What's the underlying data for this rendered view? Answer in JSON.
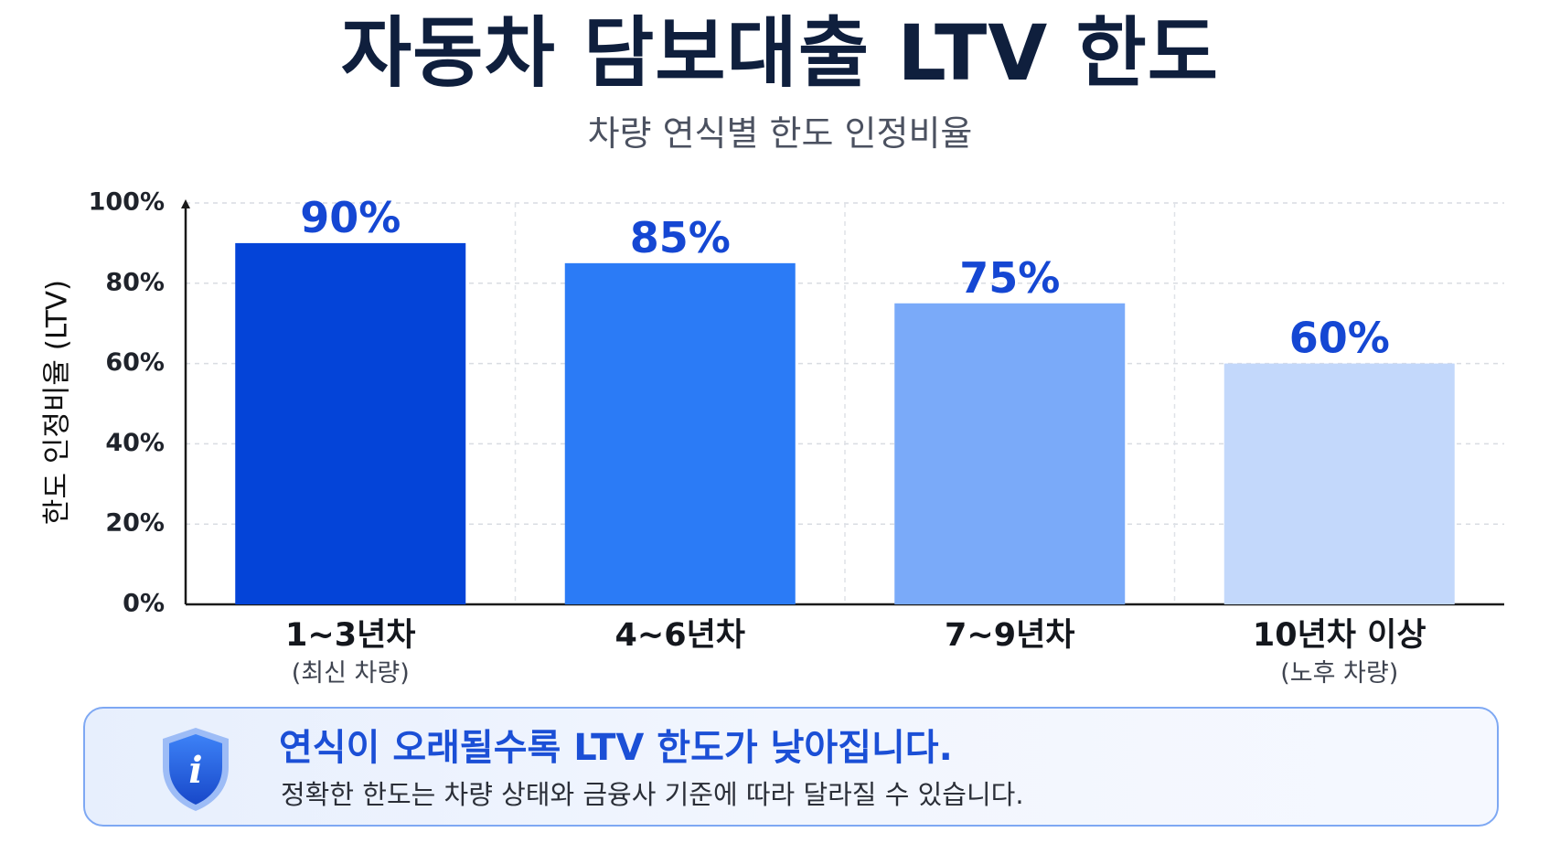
{
  "header": {
    "title": "자동차 담보대출 LTV 한도",
    "subtitle": "차량 연식별 한도 인정비율"
  },
  "chart_data": {
    "type": "bar",
    "categories": [
      "1~3년차",
      "4~6년차",
      "7~9년차",
      "10년차 이상"
    ],
    "category_sublabels": [
      "(최신 차량)",
      "",
      "",
      "(노후 차량)"
    ],
    "values": [
      90,
      85,
      75,
      60
    ],
    "data_labels": [
      "90%",
      "85%",
      "75%",
      "60%"
    ],
    "bar_colors": [
      "#0444d8",
      "#2b7bf6",
      "#7aaaf9",
      "#c3d8fb"
    ],
    "label_color": "#1547d3",
    "ylabel": "한도 인정비율 (LTV)",
    "ylim": [
      0,
      100
    ],
    "yticks": [
      0,
      20,
      40,
      60,
      80,
      100
    ],
    "ytick_labels": [
      "0%",
      "20%",
      "40%",
      "60%",
      "80%",
      "100%"
    ],
    "grid": true
  },
  "note": {
    "icon": "shield-info-icon",
    "icon_letter": "i",
    "headline": "연식이 오래될수록 LTV 한도가 낮아집니다.",
    "detail": "정확한 한도는 차량 상태와 금융사 기준에 따라 달라질 수 있습니다."
  }
}
